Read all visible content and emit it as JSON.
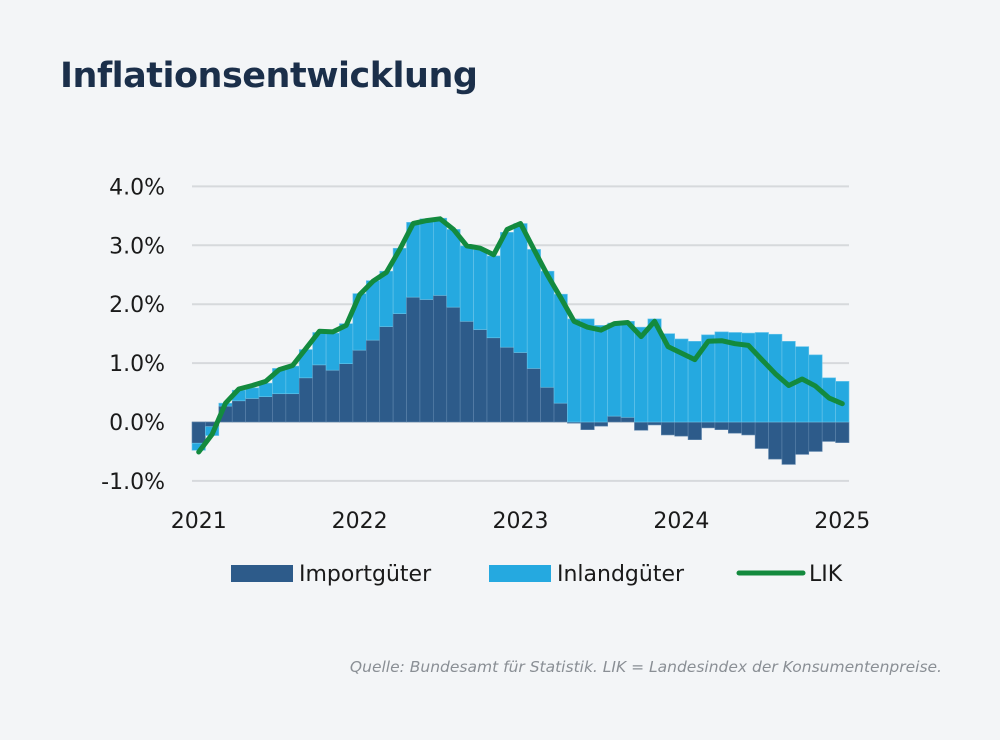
{
  "title": "Inflationsentwicklung",
  "source": "Quelle: Bundesamt für Statistik. LIK = Landesindex der Konsumentenpreise.",
  "chart_data": {
    "type": "bar",
    "stacked": true,
    "title": "",
    "xlabel": "",
    "ylabel": "",
    "ylim": [
      -1.0,
      4.0
    ],
    "yticks": [
      "-1.0%",
      "0.0%",
      "1.0%",
      "2.0%",
      "3.0%",
      "4.0%"
    ],
    "ytick_values": [
      -1,
      0,
      1,
      2,
      3,
      4
    ],
    "xtick_labels": [
      "2021",
      "2022",
      "2023",
      "2024",
      "2025"
    ],
    "grid": true,
    "legend_position": "bottom",
    "x": [
      "2021-01",
      "2021-02",
      "2021-03",
      "2021-04",
      "2021-05",
      "2021-06",
      "2021-07",
      "2021-08",
      "2021-09",
      "2021-10",
      "2021-11",
      "2021-12",
      "2022-01",
      "2022-02",
      "2022-03",
      "2022-04",
      "2022-05",
      "2022-06",
      "2022-07",
      "2022-08",
      "2022-09",
      "2022-10",
      "2022-11",
      "2022-12",
      "2023-01",
      "2023-02",
      "2023-03",
      "2023-04",
      "2023-05",
      "2023-06",
      "2023-07",
      "2023-08",
      "2023-09",
      "2023-10",
      "2023-11",
      "2023-12",
      "2024-01",
      "2024-02",
      "2024-03",
      "2024-04",
      "2024-05",
      "2024-06",
      "2024-07",
      "2024-08",
      "2024-09",
      "2024-10",
      "2024-11",
      "2024-12",
      "2025-01"
    ],
    "series": [
      {
        "name": "Importgüter",
        "type": "bar",
        "color": "#2d5b8a",
        "values": [
          -0.36,
          -0.08,
          0.27,
          0.36,
          0.4,
          0.43,
          0.48,
          0.48,
          0.75,
          0.97,
          0.88,
          0.99,
          1.22,
          1.39,
          1.62,
          1.84,
          2.12,
          2.08,
          2.15,
          1.95,
          1.71,
          1.57,
          1.43,
          1.27,
          1.18,
          0.91,
          0.59,
          0.32,
          -0.02,
          -0.13,
          -0.07,
          0.1,
          0.08,
          -0.14,
          -0.05,
          -0.22,
          -0.24,
          -0.3,
          -0.1,
          -0.13,
          -0.19,
          -0.22,
          -0.45,
          -0.63,
          -0.72,
          -0.55,
          -0.5,
          -0.33,
          -0.35
        ]
      },
      {
        "name": "Inlandgüter",
        "type": "bar",
        "color": "#25a9e0",
        "values": [
          -0.12,
          -0.15,
          0.05,
          0.18,
          0.18,
          0.23,
          0.43,
          0.47,
          0.48,
          0.55,
          0.63,
          0.68,
          0.96,
          1.01,
          0.94,
          1.11,
          1.27,
          1.37,
          1.31,
          1.32,
          1.28,
          1.36,
          1.39,
          1.95,
          2.19,
          2.02,
          1.97,
          1.85,
          1.75,
          1.75,
          1.64,
          1.58,
          1.63,
          1.61,
          1.75,
          1.5,
          1.41,
          1.37,
          1.48,
          1.53,
          1.52,
          1.51,
          1.52,
          1.49,
          1.37,
          1.28,
          1.14,
          0.75,
          0.69
        ]
      },
      {
        "name": "LIK",
        "type": "line",
        "color": "#138a3e",
        "values": [
          -0.51,
          -0.21,
          0.32,
          0.56,
          0.62,
          0.69,
          0.89,
          0.96,
          1.25,
          1.54,
          1.53,
          1.64,
          2.16,
          2.39,
          2.54,
          2.93,
          3.37,
          3.42,
          3.45,
          3.27,
          2.99,
          2.95,
          2.84,
          3.27,
          3.37,
          2.93,
          2.5,
          2.11,
          1.71,
          1.61,
          1.56,
          1.67,
          1.69,
          1.45,
          1.71,
          1.28,
          1.17,
          1.06,
          1.37,
          1.38,
          1.33,
          1.3,
          1.06,
          0.82,
          0.62,
          0.73,
          0.61,
          0.41,
          0.31
        ]
      }
    ]
  }
}
